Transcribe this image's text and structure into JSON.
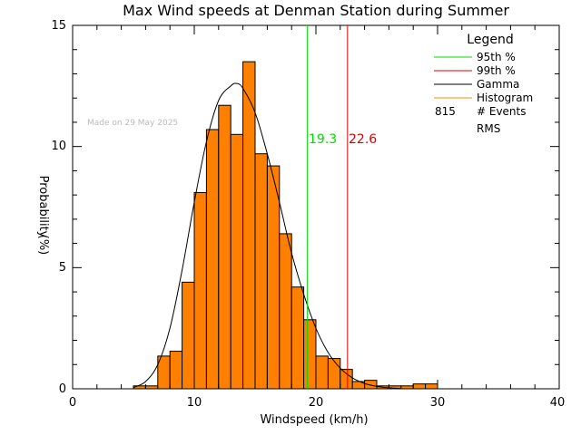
{
  "chart_data": {
    "type": "bar",
    "title": "Max Wind speeds at Denman Station during Summer",
    "xlabel": "Windspeed (km/h)",
    "ylabel": "Probability",
    "ylabel_unit": "(%)",
    "xlim": [
      0,
      40
    ],
    "ylim": [
      0,
      15
    ],
    "x_ticks": [
      "0",
      "10",
      "20",
      "30",
      "40"
    ],
    "y_ticks": [
      "0",
      "5",
      "10",
      "15"
    ],
    "watermark": "Made on 29 May 2025",
    "bin_width": 1,
    "histogram": {
      "name": "Histogram",
      "bins_left": [
        5,
        6,
        7,
        8,
        9,
        10,
        11,
        12,
        13,
        14,
        15,
        16,
        17,
        18,
        19,
        20,
        21,
        22,
        23,
        24,
        25,
        26,
        27,
        28,
        29
      ],
      "values": [
        0.12,
        0.12,
        1.35,
        1.55,
        4.4,
        8.1,
        10.7,
        11.7,
        10.5,
        13.5,
        9.7,
        9.2,
        6.4,
        4.2,
        2.85,
        1.35,
        1.25,
        0.8,
        0.3,
        0.35,
        0.12,
        0.12,
        0.12,
        0.2,
        0.2
      ]
    },
    "gamma_curve": {
      "name": "Gamma",
      "x": [
        5,
        6,
        7,
        8,
        9,
        10,
        11,
        12,
        13,
        13.5,
        14,
        15,
        16,
        17,
        18,
        19,
        20,
        21,
        22,
        23,
        24,
        25,
        26,
        27
      ],
      "y": [
        0.05,
        0.3,
        1.0,
        2.5,
        4.9,
        7.7,
        10.2,
        11.9,
        12.5,
        12.6,
        12.4,
        11.4,
        9.7,
        7.7,
        5.6,
        3.9,
        2.5,
        1.5,
        0.85,
        0.45,
        0.22,
        0.1,
        0.04,
        0.01
      ]
    },
    "reference_lines": [
      {
        "name": "95th %",
        "x": 19.3,
        "label": "19.3",
        "color": "#00dd00"
      },
      {
        "name": "99th %",
        "x": 22.6,
        "label": "22.6",
        "color": "#dd0000"
      }
    ],
    "legend": {
      "title": "Legend",
      "placement": "top-right",
      "items": [
        {
          "label": "95th %",
          "color": "#00dd00"
        },
        {
          "label": "99th %",
          "color": "#dd0000"
        },
        {
          "label": "Gamma",
          "color": "#000000"
        },
        {
          "label": "Histogram",
          "color": "#ff8c00"
        }
      ],
      "events_count": "815",
      "events_label": "# Events",
      "rms_label": "RMS"
    },
    "colors": {
      "histogram_fill": "#ff7f00",
      "histogram_stroke": "#000000",
      "curve": "#000000",
      "axis": "#000000",
      "watermark": "#bbbbbb"
    }
  }
}
